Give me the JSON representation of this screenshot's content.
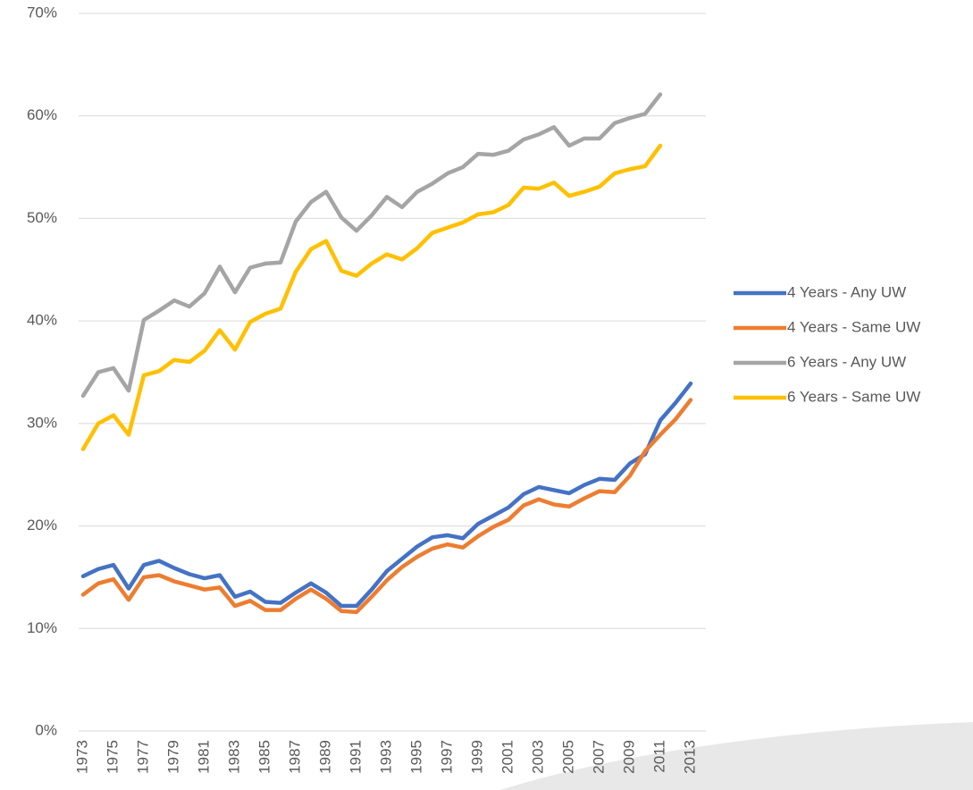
{
  "chart_data": {
    "type": "line",
    "categories": [
      "1973",
      null,
      "1975",
      null,
      "1977",
      null,
      "1979",
      null,
      "1981",
      null,
      "1983",
      null,
      "1985",
      null,
      "1987",
      null,
      "1989",
      null,
      "1991",
      null,
      "1993",
      null,
      "1995",
      null,
      "1997",
      null,
      "1999",
      null,
      "2001",
      null,
      "2003",
      null,
      "2005",
      null,
      "2007",
      null,
      "2009",
      null,
      "2011",
      null,
      "2013"
    ],
    "series": [
      {
        "name": "4 Years - Any UW",
        "color": "#4472c4",
        "values": [
          15.1,
          15.8,
          16.2,
          13.9,
          16.2,
          16.6,
          15.9,
          15.3,
          14.9,
          15.2,
          13.1,
          13.6,
          12.6,
          12.5,
          13.5,
          14.4,
          13.5,
          12.2,
          12.2,
          13.8,
          15.6,
          16.8,
          18.0,
          18.9,
          19.1,
          18.8,
          20.2,
          21.0,
          21.8,
          23.1,
          23.8,
          23.5,
          23.2,
          24.0,
          24.6,
          24.5,
          26.1,
          27.0,
          30.3,
          32.0,
          33.9
        ]
      },
      {
        "name": "4 Years - Same UW",
        "color": "#ed7d31",
        "values": [
          13.3,
          14.4,
          14.8,
          12.8,
          15.0,
          15.2,
          14.6,
          14.2,
          13.8,
          14.0,
          12.2,
          12.7,
          11.8,
          11.8,
          12.9,
          13.8,
          12.9,
          11.7,
          11.6,
          13.1,
          14.7,
          16.0,
          17.0,
          17.8,
          18.2,
          17.9,
          19.0,
          19.9,
          20.6,
          22.0,
          22.6,
          22.1,
          21.9,
          22.7,
          23.4,
          23.3,
          24.9,
          27.3,
          28.9,
          30.4,
          32.3
        ]
      },
      {
        "name": "6 Years - Any UW",
        "color": "#a5a5a5",
        "values": [
          32.7,
          35.0,
          35.4,
          33.2,
          40.1,
          41.0,
          42.0,
          41.4,
          42.7,
          45.3,
          42.8,
          45.2,
          45.6,
          45.7,
          49.7,
          51.6,
          52.6,
          50.1,
          48.8,
          50.3,
          52.1,
          51.1,
          52.6,
          53.4,
          54.4,
          55.0,
          56.3,
          56.2,
          56.6,
          57.7,
          58.2,
          58.9,
          57.1,
          57.8,
          57.8,
          59.3,
          59.8,
          60.2,
          62.1,
          null,
          null
        ]
      },
      {
        "name": "6 Years - Same UW",
        "color": "#ffc000",
        "values": [
          27.5,
          30.0,
          30.8,
          28.9,
          34.7,
          35.1,
          36.2,
          36.0,
          37.1,
          39.1,
          37.2,
          39.9,
          40.7,
          41.2,
          44.8,
          47.0,
          47.8,
          44.9,
          44.4,
          45.6,
          46.5,
          46.0,
          47.1,
          48.6,
          49.1,
          49.6,
          50.4,
          50.6,
          51.3,
          53.0,
          52.9,
          53.5,
          52.2,
          52.6,
          53.1,
          54.4,
          54.8,
          55.1,
          57.1,
          null,
          null
        ]
      }
    ],
    "ylim": [
      0,
      70
    ],
    "yticks": [
      {
        "value": 0,
        "label": "0%"
      },
      {
        "value": 10,
        "label": "10%"
      },
      {
        "value": 20,
        "label": "20%"
      },
      {
        "value": 30,
        "label": "30%"
      },
      {
        "value": 40,
        "label": "40%"
      },
      {
        "value": 50,
        "label": "50%"
      },
      {
        "value": 60,
        "label": "60%"
      },
      {
        "value": 70,
        "label": "70%"
      }
    ],
    "grid": true,
    "legend": "right"
  }
}
